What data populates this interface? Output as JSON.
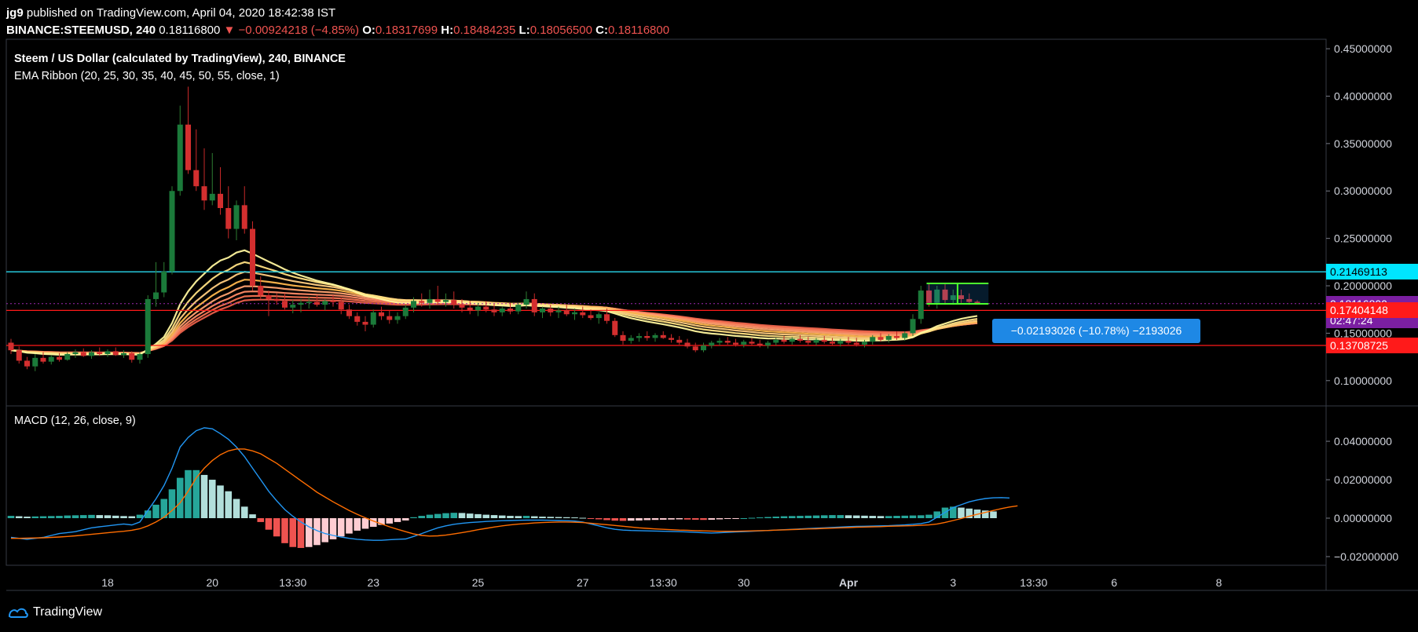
{
  "header": {
    "user": "jg9",
    "published": " published on TradingView.com, April 04, 2020 18:42:38 IST",
    "symbol": "BINANCE:STEEMUSD, 240",
    "last": "0.18116800",
    "change": "▼ −0.00924218 (−4.85%)",
    "o_label": "O:",
    "o": "0.18317699",
    "h_label": "H:",
    "h": "0.18484235",
    "l_label": "L:",
    "l": "0.18056500",
    "c_label": "C:",
    "c": "0.18116800"
  },
  "legend": {
    "title": "Steem / US Dollar (calculated by TradingView), 240, BINANCE",
    "ema": "EMA Ribbon (20, 25, 30, 35, 40, 45, 50, 55, close, 1)",
    "macd": "MACD (12, 26, close, 9)"
  },
  "measure_label": "−0.02193026 (−10.78%) −2193026",
  "price_tags": [
    {
      "label": "0.21469113",
      "value": 0.21469113,
      "bg": "#00e5ff",
      "fg": "#000000"
    },
    {
      "label": "0.18116800",
      "value": 0.181168,
      "bg": "#7b1fa2",
      "fg": "#ffffff"
    },
    {
      "label": "02:47:24",
      "value": 0.1675,
      "bg": "#7b1fa2",
      "fg": "#ffffff"
    },
    {
      "label": "0.17404148",
      "value": 0.17404148,
      "bg": "#ff1a1a",
      "fg": "#ffffff"
    },
    {
      "label": "0.13708725",
      "value": 0.13708725,
      "bg": "#ff1a1a",
      "fg": "#ffffff"
    }
  ],
  "footer": {
    "brand": "TradingView"
  },
  "colors": {
    "up": "#26a69a",
    "down": "#ef5350",
    "cyan_line": "#26c6da",
    "red_line": "#ff1a1a",
    "macd": "#2196f3",
    "signal": "#ff6d00"
  },
  "chart_data": [
    {
      "type": "candlestick",
      "title": "Steem / US Dollar (calculated by TradingView), 240, BINANCE",
      "ylim": [
        0.075,
        0.46
      ],
      "yticks": [
        "0.45000000",
        "0.40000000",
        "0.35000000",
        "0.30000000",
        "0.25000000",
        "0.20000000",
        "0.15000000",
        "0.10000000"
      ],
      "ytick_values": [
        0.45,
        0.4,
        0.35,
        0.3,
        0.25,
        0.2,
        0.15,
        0.1
      ],
      "xticks": [
        "18",
        "20",
        "13:30",
        "23",
        "25",
        "27",
        "13:30",
        "30",
        "Apr",
        "3",
        "13:30",
        "6",
        "8"
      ],
      "xtick_index": [
        12,
        25,
        35,
        45,
        58,
        71,
        81,
        91,
        104,
        117,
        127,
        137,
        150
      ],
      "horizontal_lines": [
        0.21469113,
        0.17404148,
        0.13708725
      ],
      "candles_ohlc": [
        [
          0.14,
          0.144,
          0.128,
          0.132
        ],
        [
          0.132,
          0.136,
          0.118,
          0.121
        ],
        [
          0.121,
          0.125,
          0.112,
          0.115
        ],
        [
          0.115,
          0.128,
          0.11,
          0.124
        ],
        [
          0.124,
          0.13,
          0.118,
          0.12
        ],
        [
          0.12,
          0.127,
          0.117,
          0.125
        ],
        [
          0.125,
          0.129,
          0.12,
          0.122
        ],
        [
          0.122,
          0.13,
          0.121,
          0.128
        ],
        [
          0.128,
          0.133,
          0.124,
          0.13
        ],
        [
          0.13,
          0.134,
          0.125,
          0.126
        ],
        [
          0.126,
          0.132,
          0.123,
          0.13
        ],
        [
          0.13,
          0.135,
          0.126,
          0.128
        ],
        [
          0.128,
          0.133,
          0.125,
          0.131
        ],
        [
          0.131,
          0.135,
          0.126,
          0.127
        ],
        [
          0.127,
          0.132,
          0.124,
          0.129
        ],
        [
          0.129,
          0.131,
          0.119,
          0.122
        ],
        [
          0.122,
          0.13,
          0.118,
          0.128
        ],
        [
          0.128,
          0.19,
          0.124,
          0.186
        ],
        [
          0.186,
          0.225,
          0.178,
          0.193
        ],
        [
          0.193,
          0.225,
          0.188,
          0.215
        ],
        [
          0.215,
          0.305,
          0.212,
          0.3
        ],
        [
          0.3,
          0.39,
          0.295,
          0.37
        ],
        [
          0.37,
          0.41,
          0.318,
          0.322
        ],
        [
          0.322,
          0.365,
          0.3,
          0.305
        ],
        [
          0.305,
          0.345,
          0.28,
          0.29
        ],
        [
          0.29,
          0.34,
          0.285,
          0.297
        ],
        [
          0.297,
          0.325,
          0.275,
          0.282
        ],
        [
          0.282,
          0.305,
          0.25,
          0.26
        ],
        [
          0.26,
          0.29,
          0.248,
          0.285
        ],
        [
          0.285,
          0.305,
          0.255,
          0.26
        ],
        [
          0.26,
          0.268,
          0.195,
          0.2
        ],
        [
          0.2,
          0.21,
          0.186,
          0.19
        ],
        [
          0.19,
          0.195,
          0.168,
          0.186
        ],
        [
          0.186,
          0.192,
          0.18,
          0.184
        ],
        [
          0.184,
          0.192,
          0.175,
          0.177
        ],
        [
          0.177,
          0.185,
          0.171,
          0.18
        ],
        [
          0.18,
          0.186,
          0.172,
          0.182
        ],
        [
          0.182,
          0.188,
          0.176,
          0.183
        ],
        [
          0.183,
          0.19,
          0.178,
          0.18
        ],
        [
          0.18,
          0.186,
          0.174,
          0.184
        ],
        [
          0.184,
          0.19,
          0.178,
          0.183
        ],
        [
          0.183,
          0.188,
          0.17,
          0.175
        ],
        [
          0.175,
          0.18,
          0.165,
          0.168
        ],
        [
          0.168,
          0.172,
          0.158,
          0.162
        ],
        [
          0.162,
          0.168,
          0.152,
          0.159
        ],
        [
          0.159,
          0.175,
          0.156,
          0.172
        ],
        [
          0.172,
          0.178,
          0.164,
          0.168
        ],
        [
          0.168,
          0.174,
          0.16,
          0.164
        ],
        [
          0.164,
          0.172,
          0.16,
          0.168
        ],
        [
          0.168,
          0.18,
          0.165,
          0.177
        ],
        [
          0.177,
          0.188,
          0.172,
          0.184
        ],
        [
          0.184,
          0.192,
          0.178,
          0.182
        ],
        [
          0.182,
          0.196,
          0.176,
          0.186
        ],
        [
          0.186,
          0.2,
          0.18,
          0.183
        ],
        [
          0.183,
          0.192,
          0.178,
          0.185
        ],
        [
          0.185,
          0.194,
          0.176,
          0.18
        ],
        [
          0.18,
          0.186,
          0.172,
          0.177
        ],
        [
          0.177,
          0.184,
          0.17,
          0.174
        ],
        [
          0.174,
          0.182,
          0.168,
          0.178
        ],
        [
          0.178,
          0.184,
          0.172,
          0.175
        ],
        [
          0.175,
          0.181,
          0.168,
          0.172
        ],
        [
          0.172,
          0.178,
          0.168,
          0.176
        ],
        [
          0.176,
          0.182,
          0.17,
          0.173
        ],
        [
          0.173,
          0.182,
          0.17,
          0.18
        ],
        [
          0.18,
          0.194,
          0.176,
          0.186
        ],
        [
          0.186,
          0.192,
          0.168,
          0.172
        ],
        [
          0.172,
          0.178,
          0.166,
          0.176
        ],
        [
          0.176,
          0.18,
          0.168,
          0.172
        ],
        [
          0.172,
          0.178,
          0.166,
          0.174
        ],
        [
          0.174,
          0.18,
          0.168,
          0.17
        ],
        [
          0.17,
          0.176,
          0.164,
          0.172
        ],
        [
          0.172,
          0.178,
          0.166,
          0.169
        ],
        [
          0.169,
          0.175,
          0.164,
          0.166
        ],
        [
          0.166,
          0.172,
          0.16,
          0.17
        ],
        [
          0.17,
          0.176,
          0.16,
          0.163
        ],
        [
          0.163,
          0.166,
          0.146,
          0.148
        ],
        [
          0.148,
          0.152,
          0.138,
          0.142
        ],
        [
          0.142,
          0.148,
          0.139,
          0.145
        ],
        [
          0.145,
          0.15,
          0.141,
          0.147
        ],
        [
          0.147,
          0.152,
          0.142,
          0.145
        ],
        [
          0.145,
          0.15,
          0.141,
          0.148
        ],
        [
          0.148,
          0.152,
          0.144,
          0.145
        ],
        [
          0.145,
          0.149,
          0.14,
          0.143
        ],
        [
          0.143,
          0.147,
          0.138,
          0.14
        ],
        [
          0.14,
          0.144,
          0.134,
          0.136
        ],
        [
          0.136,
          0.14,
          0.13,
          0.132
        ],
        [
          0.132,
          0.14,
          0.13,
          0.137
        ],
        [
          0.137,
          0.142,
          0.134,
          0.14
        ],
        [
          0.14,
          0.145,
          0.137,
          0.142
        ],
        [
          0.142,
          0.146,
          0.138,
          0.14
        ],
        [
          0.14,
          0.144,
          0.136,
          0.138
        ],
        [
          0.138,
          0.143,
          0.135,
          0.141
        ],
        [
          0.141,
          0.145,
          0.137,
          0.139
        ],
        [
          0.139,
          0.143,
          0.135,
          0.137
        ],
        [
          0.137,
          0.142,
          0.134,
          0.14
        ],
        [
          0.14,
          0.145,
          0.137,
          0.143
        ],
        [
          0.143,
          0.147,
          0.139,
          0.141
        ],
        [
          0.141,
          0.146,
          0.138,
          0.144
        ],
        [
          0.144,
          0.148,
          0.14,
          0.142
        ],
        [
          0.142,
          0.146,
          0.138,
          0.14
        ],
        [
          0.14,
          0.145,
          0.137,
          0.143
        ],
        [
          0.143,
          0.147,
          0.139,
          0.141
        ],
        [
          0.141,
          0.145,
          0.137,
          0.139
        ],
        [
          0.139,
          0.144,
          0.136,
          0.142
        ],
        [
          0.142,
          0.146,
          0.138,
          0.14
        ],
        [
          0.14,
          0.145,
          0.136,
          0.138
        ],
        [
          0.138,
          0.143,
          0.135,
          0.141
        ],
        [
          0.141,
          0.148,
          0.138,
          0.146
        ],
        [
          0.146,
          0.15,
          0.141,
          0.143
        ],
        [
          0.143,
          0.149,
          0.14,
          0.147
        ],
        [
          0.147,
          0.152,
          0.143,
          0.145
        ],
        [
          0.145,
          0.152,
          0.142,
          0.15
        ],
        [
          0.15,
          0.17,
          0.147,
          0.165
        ],
        [
          0.165,
          0.2,
          0.16,
          0.195
        ],
        [
          0.195,
          0.203,
          0.178,
          0.182
        ],
        [
          0.182,
          0.2,
          0.176,
          0.196
        ],
        [
          0.196,
          0.202,
          0.18,
          0.185
        ],
        [
          0.185,
          0.196,
          0.18,
          0.19
        ],
        [
          0.19,
          0.196,
          0.182,
          0.186
        ],
        [
          0.186,
          0.192,
          0.18,
          0.183
        ],
        [
          0.1832,
          0.1848,
          0.1806,
          0.1812
        ]
      ]
    },
    {
      "type": "macd",
      "title": "MACD (12, 26, close, 9)",
      "ylim": [
        -0.0245,
        0.058
      ],
      "yticks": [
        "0.04000000",
        "0.02000000",
        "0.00000000",
        "−0.02000000"
      ],
      "ytick_values": [
        0.04,
        0.02,
        0.0,
        -0.02
      ],
      "histogram": [
        0.0012,
        0.001,
        0.0008,
        0.0009,
        0.001,
        0.0011,
        0.0012,
        0.0014,
        0.0015,
        0.0016,
        0.0017,
        0.0016,
        0.0015,
        0.0013,
        0.0011,
        0.001,
        0.0018,
        0.004,
        0.007,
        0.01,
        0.015,
        0.021,
        0.025,
        0.025,
        0.0225,
        0.02,
        0.017,
        0.014,
        0.01,
        0.006,
        0.002,
        -0.002,
        -0.006,
        -0.0095,
        -0.013,
        -0.015,
        -0.0155,
        -0.015,
        -0.014,
        -0.0125,
        -0.011,
        -0.0095,
        -0.008,
        -0.0065,
        -0.0055,
        -0.0045,
        -0.0035,
        -0.0028,
        -0.002,
        -0.0012,
        0.0005,
        0.0012,
        0.0018,
        0.0022,
        0.0026,
        0.0028,
        0.0027,
        0.0024,
        0.0021,
        0.0018,
        0.0016,
        0.0014,
        0.0012,
        0.0011,
        0.0012,
        0.001,
        0.0008,
        0.0007,
        0.0006,
        0.0005,
        0.0004,
        0.0002,
        -0.0002,
        -0.0006,
        -0.001,
        -0.0013,
        -0.0014,
        -0.0013,
        -0.0012,
        -0.001,
        -0.0009,
        -0.0008,
        -0.0007,
        -0.0006,
        -0.0007,
        -0.0008,
        -0.0009,
        -0.0008,
        -0.0006,
        -0.0004,
        -0.0002,
        0.0,
        0.0002,
        0.0004,
        0.0006,
        0.0008,
        0.001,
        0.0011,
        0.0012,
        0.0013,
        0.0014,
        0.0015,
        0.0016,
        0.0016,
        0.0015,
        0.0014,
        0.0013,
        0.0012,
        0.0011,
        0.0011,
        0.0012,
        0.0013,
        0.0014,
        0.0015,
        0.0018,
        0.0035,
        0.0055,
        0.006,
        0.0055,
        0.005,
        0.0045,
        0.004,
        0.0035
      ],
      "macd": [
        -0.01,
        -0.0105,
        -0.011,
        -0.0105,
        -0.01,
        -0.009,
        -0.008,
        -0.0075,
        -0.007,
        -0.006,
        -0.005,
        -0.0045,
        -0.004,
        -0.0035,
        -0.003,
        -0.0035,
        -0.002,
        0.004,
        0.01,
        0.017,
        0.026,
        0.037,
        0.042,
        0.0455,
        0.047,
        0.0465,
        0.044,
        0.041,
        0.037,
        0.032,
        0.026,
        0.02,
        0.014,
        0.009,
        0.0045,
        0.001,
        -0.002,
        -0.0045,
        -0.0065,
        -0.008,
        -0.009,
        -0.0098,
        -0.0105,
        -0.011,
        -0.0113,
        -0.0115,
        -0.0115,
        -0.0112,
        -0.011,
        -0.0108,
        -0.0095,
        -0.008,
        -0.0065,
        -0.005,
        -0.004,
        -0.0032,
        -0.0027,
        -0.0023,
        -0.002,
        -0.0017,
        -0.0015,
        -0.0013,
        -0.0012,
        -0.0011,
        -0.001,
        -0.001,
        -0.001,
        -0.0011,
        -0.0012,
        -0.0013,
        -0.0015,
        -0.002,
        -0.003,
        -0.004,
        -0.005,
        -0.0058,
        -0.0062,
        -0.0064,
        -0.0065,
        -0.0066,
        -0.0067,
        -0.0068,
        -0.0069,
        -0.007,
        -0.0072,
        -0.0074,
        -0.0076,
        -0.0077,
        -0.0076,
        -0.0074,
        -0.0072,
        -0.007,
        -0.0068,
        -0.0066,
        -0.0064,
        -0.0062,
        -0.006,
        -0.0058,
        -0.0056,
        -0.0054,
        -0.0052,
        -0.005,
        -0.0048,
        -0.0046,
        -0.0044,
        -0.0043,
        -0.0042,
        -0.0041,
        -0.004,
        -0.0039,
        -0.0037,
        -0.0035,
        -0.0032,
        -0.0028,
        -0.002,
        0.0005,
        0.003,
        0.0055,
        0.007,
        0.0085,
        0.0095,
        0.0102,
        0.0106,
        0.0107,
        0.0105
      ],
      "signal": [
        -0.0105,
        -0.0105,
        -0.0104,
        -0.0103,
        -0.0102,
        -0.01,
        -0.0098,
        -0.0095,
        -0.0092,
        -0.0088,
        -0.0084,
        -0.008,
        -0.0076,
        -0.0072,
        -0.0068,
        -0.0063,
        -0.0055,
        -0.004,
        -0.002,
        0.0005,
        0.004,
        0.008,
        0.014,
        0.021,
        0.026,
        0.03,
        0.033,
        0.035,
        0.036,
        0.036,
        0.035,
        0.0335,
        0.031,
        0.0285,
        0.0255,
        0.0225,
        0.0195,
        0.0165,
        0.0135,
        0.011,
        0.0085,
        0.0062,
        0.004,
        0.002,
        0.0002,
        -0.0015,
        -0.003,
        -0.0045,
        -0.0058,
        -0.007,
        -0.0082,
        -0.009,
        -0.0093,
        -0.0092,
        -0.0088,
        -0.0082,
        -0.0075,
        -0.0068,
        -0.006,
        -0.0053,
        -0.0046,
        -0.004,
        -0.0035,
        -0.0031,
        -0.0028,
        -0.0025,
        -0.0023,
        -0.0021,
        -0.002,
        -0.002,
        -0.0021,
        -0.0023,
        -0.0026,
        -0.003,
        -0.0034,
        -0.0038,
        -0.0042,
        -0.0046,
        -0.005,
        -0.0053,
        -0.0056,
        -0.0058,
        -0.006,
        -0.0062,
        -0.0063,
        -0.0065,
        -0.0066,
        -0.0067,
        -0.0068,
        -0.0068,
        -0.0068,
        -0.0067,
        -0.0066,
        -0.0065,
        -0.0064,
        -0.0062,
        -0.0061,
        -0.0059,
        -0.0058,
        -0.0056,
        -0.0055,
        -0.0053,
        -0.0052,
        -0.005,
        -0.0049,
        -0.0047,
        -0.0046,
        -0.0045,
        -0.0044,
        -0.0042,
        -0.0041,
        -0.004,
        -0.0039,
        -0.0037,
        -0.0035,
        -0.003,
        -0.0022,
        -0.0012,
        -0.0002,
        0.001,
        0.002,
        0.003,
        0.004,
        0.005,
        0.0058,
        0.0064
      ]
    }
  ]
}
